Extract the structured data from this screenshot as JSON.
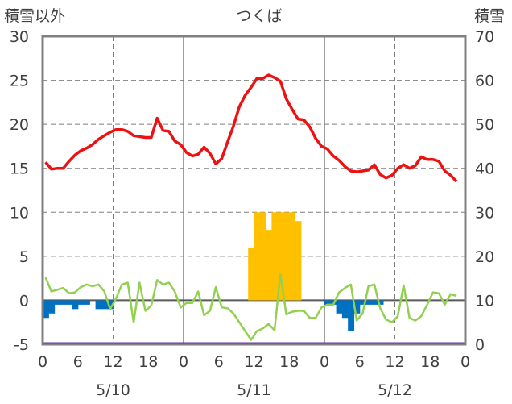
{
  "chart_data": {
    "type": "line",
    "title": "つくば",
    "left_axis_label": "積雪以外",
    "right_axis_label": "積雪",
    "left_ylim": [
      -5,
      30
    ],
    "left_ticks": [
      "30",
      "25",
      "20",
      "15",
      "10",
      "5",
      "0",
      "-5"
    ],
    "right_ylim": [
      0,
      70
    ],
    "right_ticks": [
      "70",
      "60",
      "50",
      "40",
      "30",
      "20",
      "10",
      "0"
    ],
    "x_hour_ticks": [
      "0",
      "6",
      "12",
      "18",
      "0",
      "6",
      "12",
      "18",
      "0",
      "6",
      "12",
      "18",
      "0"
    ],
    "date_labels": [
      "5/10",
      "5/11",
      "5/12"
    ],
    "grid": true,
    "colors": {
      "temperature": "#ee1111",
      "precipitation": "#ffc000",
      "wind": "#92d050",
      "sunshine": "#0070c0",
      "snow": "#7030a0",
      "frame": "#808080"
    },
    "temperature": [
      15.7,
      14.9,
      15.0,
      15.0,
      15.8,
      16.5,
      17.0,
      17.3,
      17.7,
      18.3,
      18.7,
      19.1,
      19.4,
      19.4,
      19.2,
      18.7,
      18.6,
      18.5,
      18.5,
      20.7,
      19.3,
      19.2,
      18.1,
      17.7,
      16.8,
      16.4,
      16.6,
      17.4,
      16.7,
      15.5,
      16.1,
      18.0,
      19.8,
      22.0,
      23.3,
      24.2,
      25.2,
      25.2,
      25.6,
      25.3,
      24.9,
      22.9,
      21.7,
      20.6,
      20.5,
      19.7,
      18.4,
      17.5,
      17.2,
      16.4,
      15.9,
      15.2,
      14.7,
      14.6,
      14.7,
      14.8,
      15.4,
      14.3,
      13.9,
      14.2,
      15.0,
      15.4,
      15.0,
      15.3,
      16.3,
      16.0,
      16.0,
      15.8,
      14.7,
      14.2,
      13.5
    ],
    "wind": [
      2.6,
      1.0,
      1.2,
      1.4,
      0.8,
      0.9,
      1.5,
      1.8,
      1.6,
      1.8,
      1.0,
      -1.0,
      0.2,
      1.8,
      2.0,
      -2.5,
      2.0,
      -1.2,
      -0.6,
      2.3,
      1.8,
      2.0,
      1.0,
      -0.8,
      -0.3,
      -0.3,
      1.0,
      -1.7,
      -1.2,
      1.5,
      -0.8,
      -0.9,
      -1.5,
      -2.5,
      -3.5,
      -4.5,
      -3.5,
      -3.2,
      -2.7,
      -3.4,
      3.0,
      -1.6,
      -1.3,
      -1.2,
      -1.2,
      -2.0,
      -2.0,
      -0.8,
      -0.5,
      -0.5,
      0.9,
      1.4,
      1.8,
      -2.3,
      -1.5,
      1.6,
      1.8,
      -0.9,
      -2.2,
      -2.5,
      -1.8,
      1.7,
      -2.0,
      -2.3,
      -1.8,
      -0.5,
      0.9,
      0.8,
      -0.5,
      0.7,
      0.5
    ],
    "precipitation": [
      {
        "hour": 35,
        "value": 6
      },
      {
        "hour": 36,
        "value": 10
      },
      {
        "hour": 37,
        "value": 10
      },
      {
        "hour": 38,
        "value": 8
      },
      {
        "hour": 39,
        "value": 10
      },
      {
        "hour": 40,
        "value": 10
      },
      {
        "hour": 41,
        "value": 10
      },
      {
        "hour": 42,
        "value": 10
      },
      {
        "hour": 43,
        "value": 9
      }
    ],
    "sunshine": [
      {
        "hour": 0,
        "value": -2.0
      },
      {
        "hour": 1,
        "value": -1.5
      },
      {
        "hour": 2,
        "value": -0.5
      },
      {
        "hour": 3,
        "value": -0.5
      },
      {
        "hour": 4,
        "value": -0.5
      },
      {
        "hour": 5,
        "value": -1.0
      },
      {
        "hour": 6,
        "value": -0.5
      },
      {
        "hour": 7,
        "value": -0.5
      },
      {
        "hour": 9,
        "value": -1.0
      },
      {
        "hour": 10,
        "value": -1.0
      },
      {
        "hour": 11,
        "value": -1.0
      },
      {
        "hour": 48,
        "value": -0.5
      },
      {
        "hour": 49,
        "value": -0.5
      },
      {
        "hour": 50,
        "value": -1.5
      },
      {
        "hour": 51,
        "value": -2.0
      },
      {
        "hour": 52,
        "value": -3.5
      },
      {
        "hour": 53,
        "value": -1.5
      },
      {
        "hour": 54,
        "value": -0.5
      },
      {
        "hour": 55,
        "value": -0.5
      },
      {
        "hour": 56,
        "value": -0.5
      },
      {
        "hour": 57,
        "value": -0.5
      }
    ],
    "snow": {
      "from_hour": 0,
      "to_hour": 72,
      "value": 0
    }
  }
}
